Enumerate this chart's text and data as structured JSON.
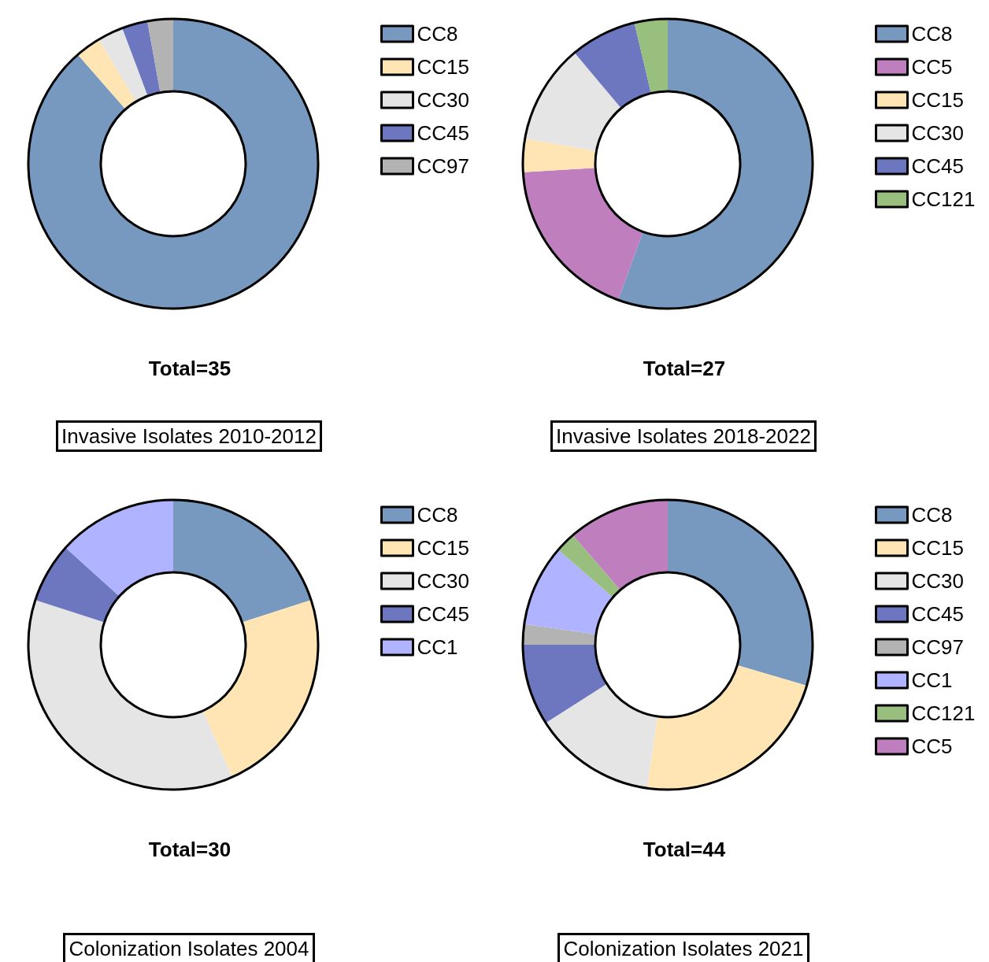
{
  "chart_data": [
    {
      "type": "donut",
      "title": "Invasive Isolates 2010-2012",
      "subtitle": "Total=35",
      "categories": [
        "CC8",
        "CC15",
        "CC30",
        "CC45",
        "CC97"
      ],
      "values": [
        88.56,
        2.86,
        2.86,
        2.86,
        2.86
      ],
      "colors": [
        "#7799bf",
        "#ffe5b3",
        "#e5e5e5",
        "#6d77bf",
        "#b3b3b3"
      ],
      "legend": "top right"
    },
    {
      "type": "donut",
      "title": "Invasive Isolates 2018-2022",
      "subtitle": "Total=27",
      "categories": [
        "CC8",
        "CC5",
        "CC15",
        "CC30",
        "CC45",
        "CC121"
      ],
      "values": [
        55.56,
        18.52,
        3.7,
        11.11,
        7.41,
        3.7
      ],
      "colors": [
        "#7799bf",
        "#bf7fbf",
        "#ffe5b3",
        "#e5e5e5",
        "#6d77bf",
        "#99bf7f"
      ],
      "legend": "top right"
    },
    {
      "type": "donut",
      "title": "Colonization Isolates 2004",
      "subtitle": "Total=30",
      "categories": [
        "CC8",
        "CC15",
        "CC30",
        "CC45",
        "CC1"
      ],
      "values": [
        20,
        23.33,
        36.67,
        6.67,
        13.33
      ],
      "colors": [
        "#7799bf",
        "#ffe5b3",
        "#e5e5e5",
        "#6d77bf",
        "#b0b3ff"
      ],
      "legend": "top right"
    },
    {
      "type": "donut",
      "title": "Colonization Isolates 2021",
      "subtitle": "Total=44",
      "categories": [
        "CC8",
        "CC15",
        "CC30",
        "CC45",
        "CC97",
        "CC1",
        "CC121",
        "CC5"
      ],
      "values": [
        29.55,
        22.73,
        13.64,
        9.09,
        2.27,
        9.09,
        2.27,
        11.36
      ],
      "colors": [
        "#7799bf",
        "#ffe5b3",
        "#e5e5e5",
        "#6d77bf",
        "#b3b3b3",
        "#b0b3ff",
        "#99bf7f",
        "#bf7fbf"
      ],
      "legend": "top right"
    }
  ]
}
